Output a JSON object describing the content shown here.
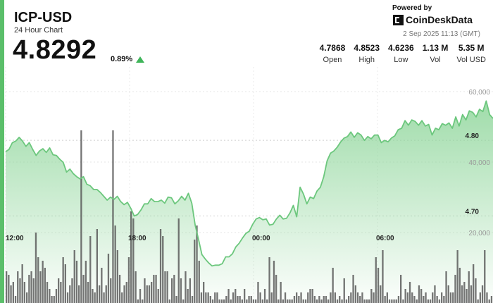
{
  "header": {
    "symbol": "ICP-USD",
    "subtitle": "24 Hour Chart",
    "price": "4.8292",
    "change": "0.89%",
    "direction_icon": "up-triangle-icon"
  },
  "branding": {
    "powered_by": "Powered by",
    "name": "CoinDeskData",
    "logo_icon": "coindesk-logo-icon",
    "timestamp": "2 Sep 2025 11:13 (GMT)"
  },
  "stats": [
    {
      "value": "4.7868",
      "label": "Open"
    },
    {
      "value": "4.8523",
      "label": "High"
    },
    {
      "value": "4.6236",
      "label": "Low"
    },
    {
      "value": "1.13 M",
      "label": "Vol"
    },
    {
      "value": "5.35 M",
      "label": "Vol USD"
    }
  ],
  "colors": {
    "accent": "#5bbf6a",
    "line": "#6cc77d",
    "area_top": "#8fd69b",
    "bar": "#555555",
    "up": "#3fb55a"
  },
  "chart_data": {
    "type": "line",
    "title": "",
    "xlabel": "",
    "ylabel": "",
    "x_ticks": [
      "12:00",
      "18:00",
      "00:00",
      "06:00"
    ],
    "price_ticks": [
      4.8,
      4.7
    ],
    "price_tick_labels": [
      "4.80",
      "4.70"
    ],
    "ylim_price": [
      4.585,
      4.897
    ],
    "volume_ticks": [
      60000,
      40000,
      20000
    ],
    "volume_tick_labels": [
      "60,000",
      "40,000",
      "20,000"
    ],
    "ylim_volume": [
      0,
      67000
    ],
    "grid": true,
    "series": [
      {
        "values": [
          4.785,
          4.788,
          4.797,
          4.799,
          4.804,
          4.799,
          4.792,
          4.797,
          4.788,
          4.78,
          4.786,
          4.789,
          4.784,
          4.79,
          4.781,
          4.78,
          4.775,
          4.771,
          4.758,
          4.762,
          4.756,
          4.752,
          4.749,
          4.752,
          4.742,
          4.74,
          4.735,
          4.735,
          4.731,
          4.726,
          4.721,
          4.725,
          4.722,
          4.726,
          4.719,
          4.715,
          4.718,
          4.71,
          4.7,
          4.702,
          4.708,
          4.716,
          4.716,
          4.723,
          4.719,
          4.719,
          4.721,
          4.717,
          4.725,
          4.724,
          4.716,
          4.72,
          4.726,
          4.721,
          4.73,
          4.717,
          4.688,
          4.669,
          4.649,
          4.643,
          4.638,
          4.634,
          4.635,
          4.635,
          4.637,
          4.646,
          4.646,
          4.65,
          4.659,
          4.664,
          4.671,
          4.677,
          4.68,
          4.689,
          4.696,
          4.698,
          4.695,
          4.696,
          4.688,
          4.689,
          4.696,
          4.701,
          4.696,
          4.697,
          4.704,
          4.714,
          4.699,
          4.738,
          4.729,
          4.716,
          4.725,
          4.723,
          4.733,
          4.738,
          4.752,
          4.773,
          4.783,
          4.786,
          4.791,
          4.798,
          4.803,
          4.805,
          4.811,
          4.804,
          4.81,
          4.807,
          4.8,
          4.805,
          4.802,
          4.807,
          4.807,
          4.797,
          4.8,
          4.798,
          4.803,
          4.806,
          4.814,
          4.816,
          4.826,
          4.82,
          4.827,
          4.825,
          4.82,
          4.826,
          4.819,
          4.821,
          4.807,
          4.816,
          4.814,
          4.822,
          4.82,
          4.823,
          4.816,
          4.831,
          4.819,
          4.834,
          4.827,
          4.839,
          4.837,
          4.831,
          4.841,
          4.838,
          4.852,
          4.834,
          4.829
        ]
      },
      {
        "name": "Vol",
        "values": [
          9000,
          8000,
          5000,
          6000,
          2000,
          9000,
          7000,
          11000,
          6000,
          3000,
          8000,
          9000,
          7000,
          20000,
          13000,
          9000,
          12000,
          10000,
          6000,
          4000,
          2000,
          2000,
          4000,
          7000,
          6000,
          13000,
          11000,
          3000,
          5000,
          7000,
          15000,
          12000,
          5000,
          49000,
          8000,
          12000,
          6000,
          19000,
          4000,
          3000,
          21000,
          5000,
          10000,
          3000,
          5000,
          14000,
          7000,
          49000,
          22000,
          15000,
          8000,
          3000,
          5000,
          6000,
          13000,
          26000,
          24000,
          9000,
          1000,
          4000,
          1000,
          7000,
          5000,
          5000,
          6000,
          8000,
          8000,
          4000,
          21000,
          19000,
          9000,
          9000,
          1000,
          7000,
          8000,
          2000,
          24000,
          7000,
          1000,
          9000,
          4000,
          7000,
          2000,
          18000,
          22000,
          12000,
          3000,
          6000,
          3000,
          3000,
          2000,
          1000,
          3000,
          3000,
          1000,
          1000,
          1000,
          2000,
          4000,
          1000,
          3000,
          4000,
          2000,
          2000,
          1000,
          4000,
          1000,
          2000,
          2000,
          1000,
          1000,
          6000,
          3000,
          1000,
          4000,
          1000,
          13000,
          3000,
          12000,
          8000,
          1000,
          6000,
          1000,
          3000,
          1000,
          1000,
          1000,
          2000,
          3000,
          2000,
          3000,
          1000,
          1000,
          3000,
          4000,
          4000,
          2000,
          1000,
          2000,
          1000,
          2000,
          2000,
          1000,
          3000,
          10000,
          3000,
          1000,
          2000,
          1000,
          7000,
          1000,
          2000,
          3000,
          8000,
          5000,
          3000,
          2000,
          3000,
          1000,
          1000,
          1000,
          4000,
          3000,
          13000,
          10000,
          5000,
          15000,
          2000,
          3000,
          1000,
          1000,
          1000,
          1000,
          2000,
          8000,
          1000,
          4000,
          3000,
          6000,
          3000,
          2000,
          1000,
          5000,
          4000,
          2000,
          3000,
          1000,
          1000,
          3000,
          5000,
          2000,
          1000,
          3000,
          2000,
          9000,
          5000,
          3000,
          3000,
          8000,
          15000,
          10000,
          5000,
          6000,
          4000,
          9000,
          5000,
          11000,
          7000,
          1000,
          3000,
          5000,
          15000,
          3000,
          1000,
          2000
        ]
      }
    ]
  }
}
